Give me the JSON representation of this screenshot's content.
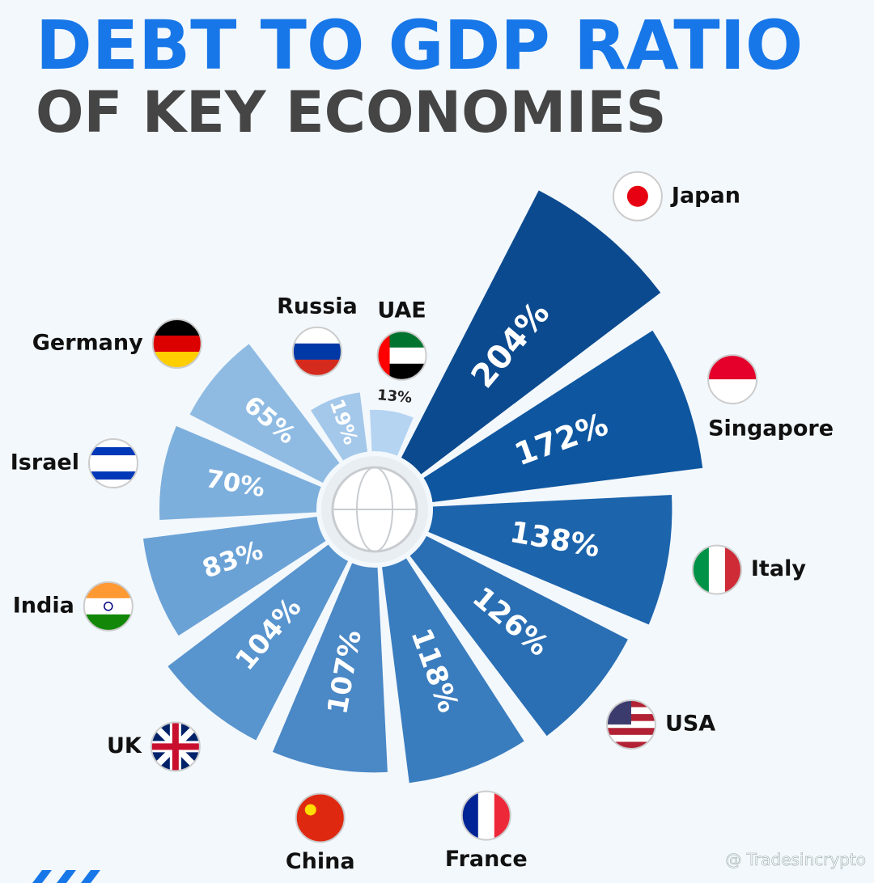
{
  "chart_data": {
    "type": "radial-bar",
    "title": "DEBT TO GDP RATIO",
    "subtitle": "OF KEY ECONOMIES",
    "categories": [
      "Japan",
      "Singapore",
      "Italy",
      "USA",
      "France",
      "China",
      "UK",
      "India",
      "Israel",
      "Germany",
      "Russia",
      "UAE"
    ],
    "values": [
      204,
      172,
      138,
      126,
      118,
      107,
      104,
      83,
      70,
      65,
      19,
      13
    ],
    "value_labels": [
      "204%",
      "172%",
      "138%",
      "126%",
      "118%",
      "107%",
      "104%",
      "83%",
      "70%",
      "65%",
      "19%",
      "13%"
    ],
    "colors": [
      "#0b4a8f",
      "#0e56a0",
      "#1c64ac",
      "#2a6fb4",
      "#3a7dbf",
      "#4a88c6",
      "#5894cd",
      "#6aa2d6",
      "#7dafdd",
      "#8fbbe3",
      "#a4c8ea",
      "#b5d4f2"
    ]
  },
  "watermark": "@ Tradesincrypto"
}
